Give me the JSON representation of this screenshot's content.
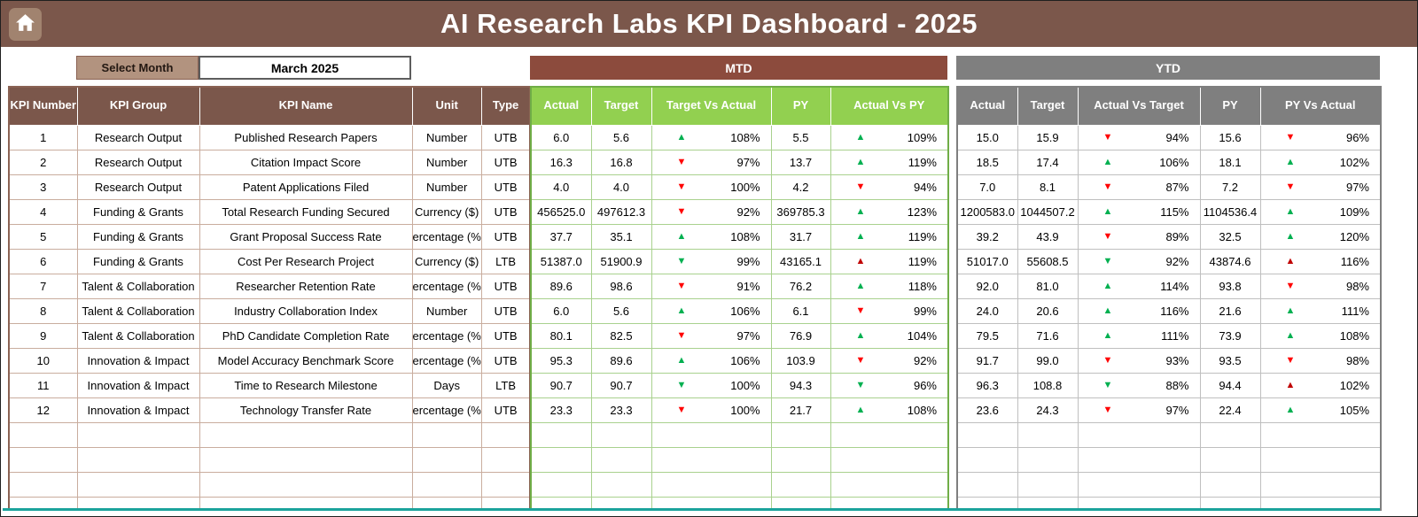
{
  "header": {
    "title": "AI Research Labs KPI Dashboard - 2025"
  },
  "controls": {
    "select_month_label": "Select Month",
    "selected_month": "March 2025"
  },
  "sections": {
    "mtd": "MTD",
    "ytd": "YTD"
  },
  "colors": {
    "topbar_brown": "#7B574B",
    "mtd_band": "#8C4B3D",
    "ytd_band": "#7F7F7F",
    "green_header": "#92D050",
    "select_month_bg": "#B2937F",
    "bottom_accent": "#1BA39C",
    "triangle_green": "#00B050",
    "triangle_red": "#FF0000",
    "triangle_dark_red": "#C00000"
  },
  "table": {
    "left_headers": [
      "KPI Number",
      "KPI Group",
      "KPI Name",
      "Unit",
      "Type"
    ],
    "mtd_headers": [
      "Actual",
      "Target",
      "Target Vs Actual",
      "PY",
      "Actual Vs PY"
    ],
    "ytd_headers": [
      "Actual",
      "Target",
      "Actual Vs Target",
      "PY",
      "PY Vs Actual"
    ],
    "empty_rows": 4,
    "rows": [
      {
        "num": "1",
        "group": "Research Output",
        "name": "Published Research Papers",
        "unit": "Number",
        "type": "UTB",
        "mtd": {
          "actual": "6.0",
          "target": "5.6",
          "tva": {
            "dir": "up",
            "color": "#00B050",
            "pct": "108%"
          },
          "py": "5.5",
          "avpy": {
            "dir": "up",
            "color": "#00B050",
            "pct": "109%"
          }
        },
        "ytd": {
          "actual": "15.0",
          "target": "15.9",
          "avt": {
            "dir": "down",
            "color": "#FF0000",
            "pct": "94%"
          },
          "py": "15.6",
          "pyva": {
            "dir": "down",
            "color": "#FF0000",
            "pct": "96%"
          }
        }
      },
      {
        "num": "2",
        "group": "Research Output",
        "name": "Citation Impact Score",
        "unit": "Number",
        "type": "UTB",
        "mtd": {
          "actual": "16.3",
          "target": "16.8",
          "tva": {
            "dir": "down",
            "color": "#FF0000",
            "pct": "97%"
          },
          "py": "13.7",
          "avpy": {
            "dir": "up",
            "color": "#00B050",
            "pct": "119%"
          }
        },
        "ytd": {
          "actual": "18.5",
          "target": "17.4",
          "avt": {
            "dir": "up",
            "color": "#00B050",
            "pct": "106%"
          },
          "py": "18.1",
          "pyva": {
            "dir": "up",
            "color": "#00B050",
            "pct": "102%"
          }
        }
      },
      {
        "num": "3",
        "group": "Research Output",
        "name": "Patent Applications Filed",
        "unit": "Number",
        "type": "UTB",
        "mtd": {
          "actual": "4.0",
          "target": "4.0",
          "tva": {
            "dir": "down",
            "color": "#FF0000",
            "pct": "100%"
          },
          "py": "4.2",
          "avpy": {
            "dir": "down",
            "color": "#FF0000",
            "pct": "94%"
          }
        },
        "ytd": {
          "actual": "7.0",
          "target": "8.1",
          "avt": {
            "dir": "down",
            "color": "#FF0000",
            "pct": "87%"
          },
          "py": "7.2",
          "pyva": {
            "dir": "down",
            "color": "#FF0000",
            "pct": "97%"
          }
        }
      },
      {
        "num": "4",
        "group": "Funding & Grants",
        "name": "Total Research Funding Secured",
        "unit": "Currency ($)",
        "type": "UTB",
        "mtd": {
          "actual": "456525.0",
          "target": "497612.3",
          "tva": {
            "dir": "down",
            "color": "#FF0000",
            "pct": "92%"
          },
          "py": "369785.3",
          "avpy": {
            "dir": "up",
            "color": "#00B050",
            "pct": "123%"
          }
        },
        "ytd": {
          "actual": "1200583.0",
          "target": "1044507.2",
          "avt": {
            "dir": "up",
            "color": "#00B050",
            "pct": "115%"
          },
          "py": "1104536.4",
          "pyva": {
            "dir": "up",
            "color": "#00B050",
            "pct": "109%"
          }
        }
      },
      {
        "num": "5",
        "group": "Funding & Grants",
        "name": "Grant Proposal Success Rate",
        "unit": "ercentage (%",
        "type": "UTB",
        "mtd": {
          "actual": "37.7",
          "target": "35.1",
          "tva": {
            "dir": "up",
            "color": "#00B050",
            "pct": "108%"
          },
          "py": "31.7",
          "avpy": {
            "dir": "up",
            "color": "#00B050",
            "pct": "119%"
          }
        },
        "ytd": {
          "actual": "39.2",
          "target": "43.9",
          "avt": {
            "dir": "down",
            "color": "#FF0000",
            "pct": "89%"
          },
          "py": "32.5",
          "pyva": {
            "dir": "up",
            "color": "#00B050",
            "pct": "120%"
          }
        }
      },
      {
        "num": "6",
        "group": "Funding & Grants",
        "name": "Cost Per Research Project",
        "unit": "Currency ($)",
        "type": "LTB",
        "mtd": {
          "actual": "51387.0",
          "target": "51900.9",
          "tva": {
            "dir": "down",
            "color": "#00B050",
            "pct": "99%"
          },
          "py": "43165.1",
          "avpy": {
            "dir": "up",
            "color": "#C00000",
            "pct": "119%"
          }
        },
        "ytd": {
          "actual": "51017.0",
          "target": "55608.5",
          "avt": {
            "dir": "down",
            "color": "#00B050",
            "pct": "92%"
          },
          "py": "43874.6",
          "pyva": {
            "dir": "up",
            "color": "#C00000",
            "pct": "116%"
          }
        }
      },
      {
        "num": "7",
        "group": "Talent & Collaboration",
        "name": "Researcher Retention Rate",
        "unit": "ercentage (%",
        "type": "UTB",
        "mtd": {
          "actual": "89.6",
          "target": "98.6",
          "tva": {
            "dir": "down",
            "color": "#FF0000",
            "pct": "91%"
          },
          "py": "76.2",
          "avpy": {
            "dir": "up",
            "color": "#00B050",
            "pct": "118%"
          }
        },
        "ytd": {
          "actual": "92.0",
          "target": "81.0",
          "avt": {
            "dir": "up",
            "color": "#00B050",
            "pct": "114%"
          },
          "py": "93.8",
          "pyva": {
            "dir": "down",
            "color": "#FF0000",
            "pct": "98%"
          }
        }
      },
      {
        "num": "8",
        "group": "Talent & Collaboration",
        "name": "Industry Collaboration Index",
        "unit": "Number",
        "type": "UTB",
        "mtd": {
          "actual": "6.0",
          "target": "5.6",
          "tva": {
            "dir": "up",
            "color": "#00B050",
            "pct": "106%"
          },
          "py": "6.1",
          "avpy": {
            "dir": "down",
            "color": "#FF0000",
            "pct": "99%"
          }
        },
        "ytd": {
          "actual": "24.0",
          "target": "20.6",
          "avt": {
            "dir": "up",
            "color": "#00B050",
            "pct": "116%"
          },
          "py": "21.6",
          "pyva": {
            "dir": "up",
            "color": "#00B050",
            "pct": "111%"
          }
        }
      },
      {
        "num": "9",
        "group": "Talent & Collaboration",
        "name": "PhD Candidate Completion Rate",
        "unit": "ercentage (%",
        "type": "UTB",
        "mtd": {
          "actual": "80.1",
          "target": "82.5",
          "tva": {
            "dir": "down",
            "color": "#FF0000",
            "pct": "97%"
          },
          "py": "76.9",
          "avpy": {
            "dir": "up",
            "color": "#00B050",
            "pct": "104%"
          }
        },
        "ytd": {
          "actual": "79.5",
          "target": "71.6",
          "avt": {
            "dir": "up",
            "color": "#00B050",
            "pct": "111%"
          },
          "py": "73.9",
          "pyva": {
            "dir": "up",
            "color": "#00B050",
            "pct": "108%"
          }
        }
      },
      {
        "num": "10",
        "group": "Innovation & Impact",
        "name": "Model Accuracy Benchmark Score",
        "unit": "ercentage (%",
        "type": "UTB",
        "mtd": {
          "actual": "95.3",
          "target": "89.6",
          "tva": {
            "dir": "up",
            "color": "#00B050",
            "pct": "106%"
          },
          "py": "103.9",
          "avpy": {
            "dir": "down",
            "color": "#FF0000",
            "pct": "92%"
          }
        },
        "ytd": {
          "actual": "91.7",
          "target": "99.0",
          "avt": {
            "dir": "down",
            "color": "#FF0000",
            "pct": "93%"
          },
          "py": "93.5",
          "pyva": {
            "dir": "down",
            "color": "#FF0000",
            "pct": "98%"
          }
        }
      },
      {
        "num": "11",
        "group": "Innovation & Impact",
        "name": "Time to Research Milestone",
        "unit": "Days",
        "type": "LTB",
        "mtd": {
          "actual": "90.7",
          "target": "90.7",
          "tva": {
            "dir": "down",
            "color": "#00B050",
            "pct": "100%"
          },
          "py": "94.3",
          "avpy": {
            "dir": "down",
            "color": "#00B050",
            "pct": "96%"
          }
        },
        "ytd": {
          "actual": "96.3",
          "target": "108.8",
          "avt": {
            "dir": "down",
            "color": "#00B050",
            "pct": "88%"
          },
          "py": "94.4",
          "pyva": {
            "dir": "up",
            "color": "#C00000",
            "pct": "102%"
          }
        }
      },
      {
        "num": "12",
        "group": "Innovation & Impact",
        "name": "Technology Transfer Rate",
        "unit": "ercentage (%",
        "type": "UTB",
        "mtd": {
          "actual": "23.3",
          "target": "23.3",
          "tva": {
            "dir": "down",
            "color": "#FF0000",
            "pct": "100%"
          },
          "py": "21.7",
          "avpy": {
            "dir": "up",
            "color": "#00B050",
            "pct": "108%"
          }
        },
        "ytd": {
          "actual": "23.6",
          "target": "24.3",
          "avt": {
            "dir": "down",
            "color": "#FF0000",
            "pct": "97%"
          },
          "py": "22.4",
          "pyva": {
            "dir": "up",
            "color": "#00B050",
            "pct": "105%"
          }
        }
      }
    ]
  }
}
